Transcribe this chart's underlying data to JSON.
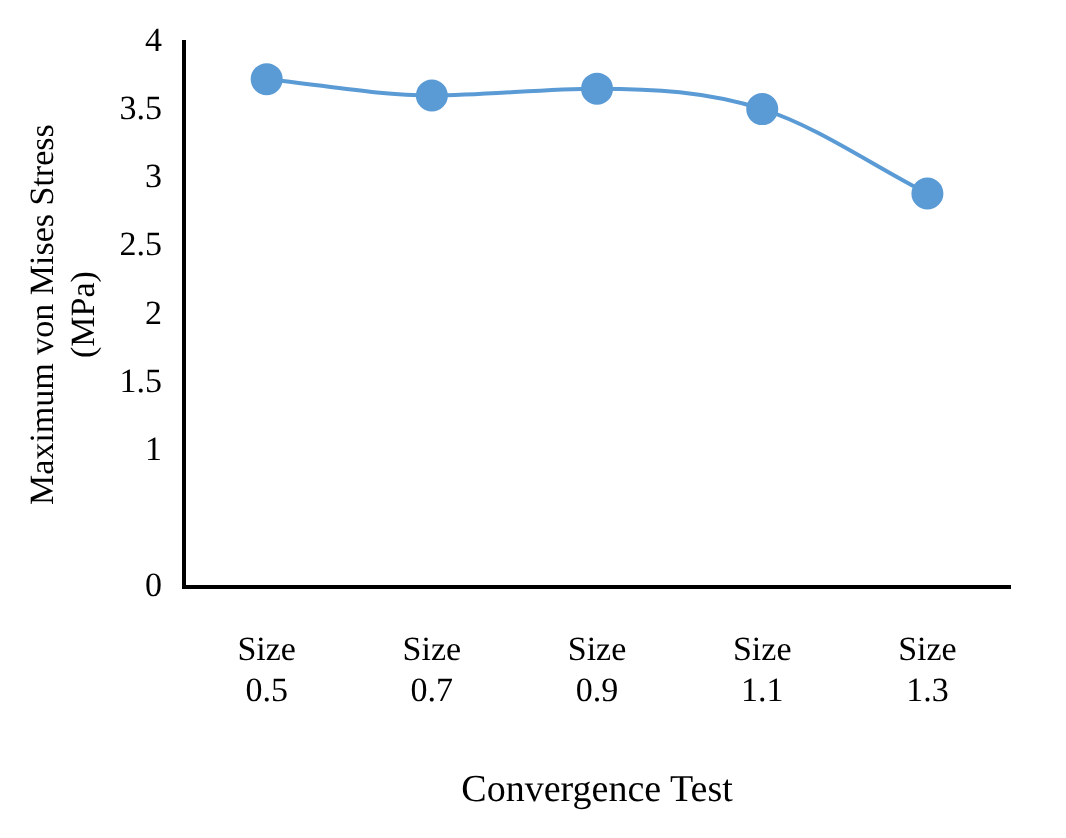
{
  "chart_data": {
    "type": "line",
    "xlabel": "Convergence Test",
    "ylabel": "Maximum von Mises Stress (MPa)",
    "categories": [
      "Size 0.5",
      "Size 0.7",
      "Size 0.9",
      "Size 1.1",
      "Size 1.3"
    ],
    "series": [
      {
        "color": "#5b9bd5",
        "values": [
          3.73,
          3.61,
          3.66,
          3.51,
          2.89
        ]
      }
    ],
    "ylim": [
      0,
      4
    ],
    "yticks": [
      0,
      1,
      1.5,
      2,
      2.5,
      3,
      3.5,
      4
    ],
    "grid": false,
    "legend": false,
    "marker": "circle",
    "line_style": "solid"
  }
}
